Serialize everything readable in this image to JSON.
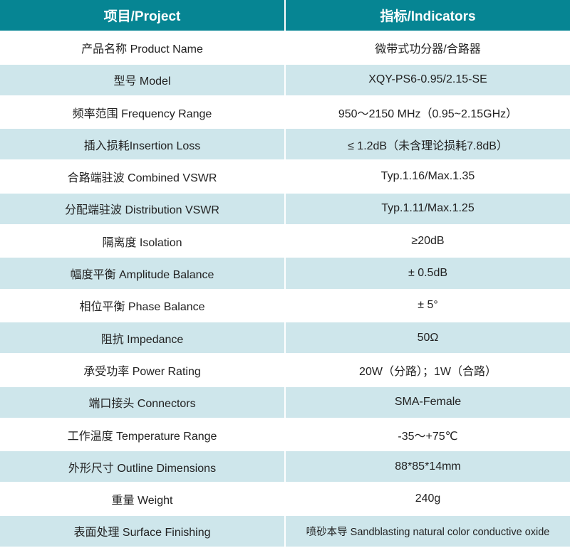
{
  "header": {
    "col1": "项目/Project",
    "col2": "指标/Indicators"
  },
  "colors": {
    "header_bg": "#068593",
    "alt_row_bg": "#cee6eb"
  },
  "rows": [
    {
      "label": "产品名称 Product Name",
      "value": "微带式功分器/合路器"
    },
    {
      "label": "型号 Model",
      "value": "XQY-PS6-0.95/2.15-SE"
    },
    {
      "label": "频率范围 Frequency Range",
      "value": "950～2150 MHz（0.95~2.15GHz）"
    },
    {
      "label": "插入损耗Insertion Loss",
      "value": "≤ 1.2dB（未含理论损耗7.8dB）"
    },
    {
      "label": "合路端驻波 Combined VSWR",
      "value": "Typ.1.16/Max.1.35"
    },
    {
      "label": "分配端驻波 Distribution VSWR",
      "value": "Typ.1.11/Max.1.25"
    },
    {
      "label": "隔离度 Isolation",
      "value": "≥20dB"
    },
    {
      "label": "幅度平衡 Amplitude Balance",
      "value": "± 0.5dB"
    },
    {
      "label": "相位平衡 Phase Balance",
      "value": "± 5°"
    },
    {
      "label": "阻抗 Impedance",
      "value": "50Ω"
    },
    {
      "label": "承受功率 Power Rating",
      "value": "20W（分路）；1W（合路）"
    },
    {
      "label": "端口接头 Connectors",
      "value": "SMA-Female"
    },
    {
      "label": "工作温度 Temperature Range",
      "value": "-35～+75℃"
    },
    {
      "label": "外形尺寸 Outline Dimensions",
      "value": "88*85*14mm"
    },
    {
      "label": "重量 Weight",
      "value": "240g"
    },
    {
      "label": "表面处理 Surface Finishing",
      "value": "喷砂本导 Sandblasting natural color conductive oxide"
    }
  ]
}
